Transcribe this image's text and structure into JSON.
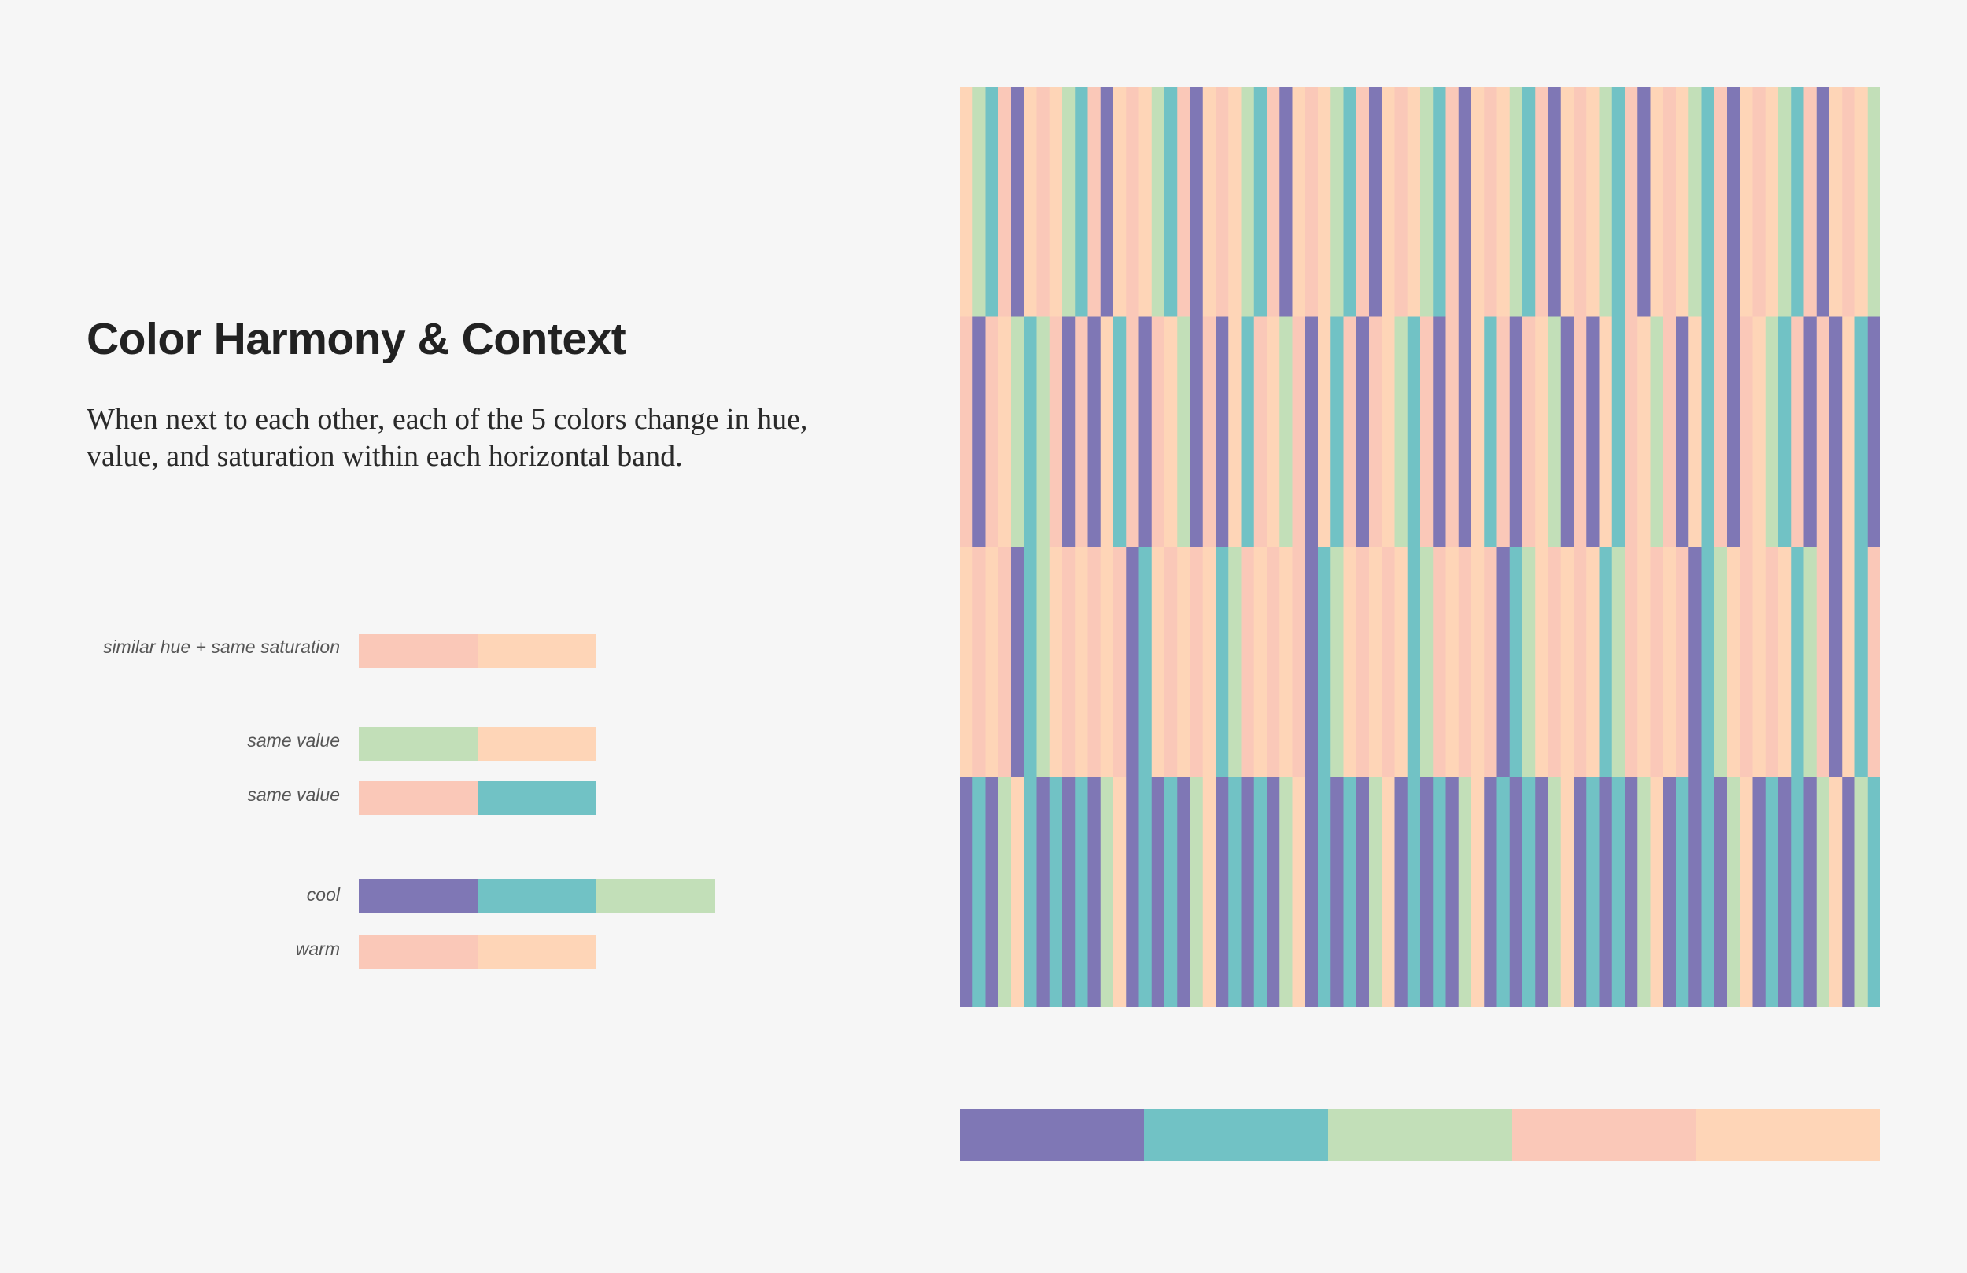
{
  "title": "Color Harmony & Context",
  "description": "When next to each other, each of the 5 colors change in hue, value, and saturation within each horizontal band.",
  "colors": {
    "purple": "#7f77b5",
    "teal": "#71c2c5",
    "green": "#c2dfb8",
    "salmon": "#fac8b8",
    "peach": "#fed5b7",
    "background": "#f6f6f6"
  },
  "legend": [
    {
      "label": "similar hue + same saturation",
      "swatches": [
        "salmon",
        "peach"
      ]
    },
    {
      "label": "same value",
      "swatches": [
        "green",
        "peach"
      ]
    },
    {
      "label": "same value",
      "swatches": [
        "salmon",
        "teal"
      ]
    },
    {
      "label": "cool",
      "swatches": [
        "purple",
        "teal",
        "green"
      ]
    },
    {
      "label": "warm",
      "swatches": [
        "salmon",
        "peach"
      ]
    }
  ],
  "palette": [
    "purple",
    "teal",
    "green",
    "salmon",
    "peach"
  ],
  "weave": {
    "bands": [
      {
        "stripes": [
          "peach",
          "green",
          "teal",
          "salmon",
          "purple",
          "peach",
          "salmon",
          "peach",
          "green",
          "teal",
          "salmon",
          "purple",
          "peach",
          "salmon",
          "peach",
          "green",
          "teal",
          "salmon",
          "purple",
          "peach",
          "salmon",
          "peach",
          "green",
          "teal",
          "salmon",
          "purple",
          "peach",
          "salmon",
          "peach",
          "green",
          "teal",
          "salmon",
          "purple",
          "peach",
          "salmon",
          "peach",
          "green",
          "teal",
          "salmon",
          "purple",
          "peach",
          "salmon",
          "peach",
          "green",
          "teal",
          "salmon",
          "purple",
          "peach",
          "salmon",
          "peach",
          "green",
          "teal",
          "salmon",
          "purple",
          "peach",
          "salmon",
          "peach",
          "green",
          "teal",
          "salmon",
          "purple",
          "peach",
          "salmon",
          "peach",
          "green",
          "teal",
          "salmon",
          "purple",
          "peach",
          "salmon",
          "peach",
          "green"
        ]
      },
      {
        "stripes": [
          "salmon",
          "purple",
          "salmon",
          "peach",
          "green",
          "teal",
          "green",
          "salmon",
          "purple",
          "salmon",
          "purple",
          "peach",
          "teal",
          "salmon",
          "purple",
          "salmon",
          "peach",
          "green",
          "purple",
          "salmon",
          "purple",
          "peach",
          "teal",
          "salmon",
          "peach",
          "green",
          "salmon",
          "purple",
          "peach",
          "teal",
          "salmon",
          "purple",
          "salmon",
          "peach",
          "green",
          "teal",
          "salmon",
          "purple",
          "salmon",
          "purple",
          "peach",
          "teal",
          "salmon",
          "purple",
          "salmon",
          "peach",
          "green",
          "purple",
          "salmon",
          "purple",
          "peach",
          "teal",
          "salmon",
          "peach",
          "green",
          "salmon",
          "purple",
          "peach",
          "teal",
          "salmon",
          "purple",
          "salmon",
          "peach",
          "green",
          "teal",
          "salmon",
          "purple",
          "salmon",
          "purple",
          "peach",
          "teal",
          "purple"
        ]
      },
      {
        "stripes": [
          "peach",
          "salmon",
          "peach",
          "salmon",
          "purple",
          "teal",
          "green",
          "peach",
          "salmon",
          "peach",
          "salmon",
          "peach",
          "salmon",
          "purple",
          "teal",
          "peach",
          "salmon",
          "peach",
          "salmon",
          "peach",
          "teal",
          "green",
          "salmon",
          "peach",
          "salmon",
          "peach",
          "salmon",
          "purple",
          "teal",
          "green",
          "peach",
          "salmon",
          "peach",
          "salmon",
          "peach",
          "teal",
          "green",
          "salmon",
          "peach",
          "salmon",
          "peach",
          "salmon",
          "purple",
          "teal",
          "green",
          "peach",
          "salmon",
          "peach",
          "salmon",
          "peach",
          "teal",
          "green",
          "salmon",
          "peach",
          "salmon",
          "peach",
          "salmon",
          "purple",
          "teal",
          "green",
          "peach",
          "salmon",
          "peach",
          "salmon",
          "peach",
          "teal",
          "green",
          "salmon",
          "purple",
          "peach",
          "teal",
          "salmon"
        ]
      },
      {
        "stripes": [
          "purple",
          "teal",
          "purple",
          "green",
          "peach",
          "teal",
          "purple",
          "teal",
          "purple",
          "teal",
          "purple",
          "green",
          "peach",
          "purple",
          "teal",
          "purple",
          "teal",
          "purple",
          "green",
          "peach",
          "purple",
          "teal",
          "purple",
          "teal",
          "purple",
          "green",
          "peach",
          "purple",
          "teal",
          "purple",
          "teal",
          "purple",
          "green",
          "peach",
          "purple",
          "teal",
          "purple",
          "teal",
          "purple",
          "green",
          "peach",
          "purple",
          "teal",
          "purple",
          "teal",
          "purple",
          "green",
          "peach",
          "purple",
          "teal",
          "purple",
          "teal",
          "purple",
          "green",
          "peach",
          "purple",
          "teal",
          "purple",
          "teal",
          "purple",
          "green",
          "peach",
          "purple",
          "teal",
          "purple",
          "teal",
          "purple",
          "green",
          "peach",
          "purple",
          "green",
          "teal"
        ]
      }
    ]
  }
}
